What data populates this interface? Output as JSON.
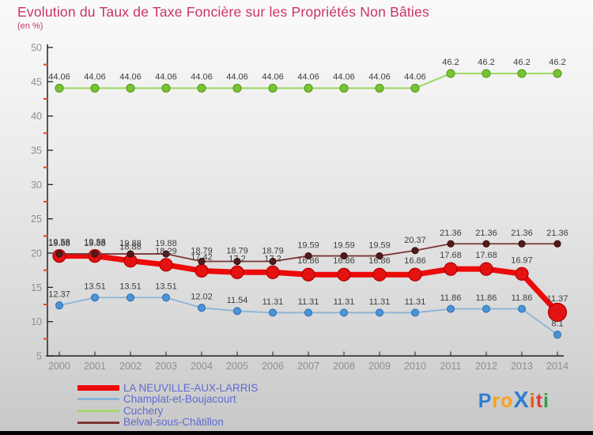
{
  "title": "Evolution du Taux de Taxe Foncière sur les Propriétés Non Bâties",
  "subtitle": "(en %)",
  "chart_data": {
    "type": "line",
    "x": [
      2000,
      2001,
      2002,
      2003,
      2004,
      2005,
      2006,
      2007,
      2008,
      2009,
      2010,
      2011,
      2012,
      2013,
      2014
    ],
    "ylim": [
      5,
      50
    ],
    "y_major_step": 5,
    "y_tick_labels": [
      "5",
      "10",
      "15",
      "20",
      "25",
      "30",
      "35",
      "40",
      "45",
      "50"
    ],
    "grid": false,
    "legend_position": "bottom-left",
    "axis_label_color": "#8f8f8f",
    "axis_line_color": "#222222",
    "minor_tick_color": "#d04b2e",
    "point_label_color": "#3e3e3e",
    "series": [
      {
        "name": "LA NEUVILLE-AUX-LARRIS",
        "color": "#ec0a0a",
        "line_width": 7,
        "marker_radius": 8,
        "last_marker_radius": 11.5,
        "marker_fill": "#e51212",
        "marker_stroke": "#b00000",
        "values": [
          19.58,
          19.58,
          18.88,
          18.29,
          17.42,
          17.2,
          17.2,
          16.86,
          16.86,
          16.86,
          16.86,
          17.68,
          17.68,
          16.97,
          11.37
        ]
      },
      {
        "name": "Champlat-et-Boujacourt",
        "color": "#8ab4d8",
        "line_width": 1.8,
        "marker_radius": 4.5,
        "marker_fill": "#4a94d8",
        "marker_stroke": "#3576b5",
        "values": [
          12.37,
          13.51,
          13.51,
          13.51,
          12.02,
          11.54,
          11.31,
          11.31,
          11.31,
          11.31,
          11.31,
          11.86,
          11.86,
          11.86,
          8.1
        ]
      },
      {
        "name": "Cuchery",
        "color": "#a3d96d",
        "line_width": 2.2,
        "marker_radius": 5,
        "marker_fill": "#78c433",
        "marker_stroke": "#5a9e22",
        "values": [
          44.06,
          44.06,
          44.06,
          44.06,
          44.06,
          44.06,
          44.06,
          44.06,
          44.06,
          44.06,
          44.06,
          46.2,
          46.2,
          46.2,
          46.2
        ]
      },
      {
        "name": "Belval-sous-Châtillon",
        "color": "#7d3636",
        "line_width": 1.8,
        "marker_radius": 4,
        "marker_fill": "#531b1b",
        "marker_stroke": "#3c1010",
        "values": [
          19.88,
          19.88,
          19.88,
          19.88,
          18.79,
          18.79,
          18.79,
          19.59,
          19.59,
          19.59,
          20.37,
          21.36,
          21.36,
          21.36,
          21.36
        ]
      }
    ]
  },
  "legend": {
    "items": [
      {
        "label": "LA NEUVILLE-AUX-LARRIS",
        "color": "#ec0a0a",
        "swatch_height": 7
      },
      {
        "label": "Champlat-et-Boujacourt",
        "color": "#8ab4d8",
        "swatch_height": 3
      },
      {
        "label": "Cuchery",
        "color": "#a3d96d",
        "swatch_height": 3
      },
      {
        "label": "Belval-sous-Châtillon",
        "color": "#7d3636",
        "swatch_height": 3
      }
    ]
  },
  "logo": {
    "text": "Proxiti",
    "letters": [
      {
        "ch": "P",
        "color": "#2e7dd2"
      },
      {
        "ch": "r",
        "color": "#f6a21d"
      },
      {
        "ch": "o",
        "color": "#f6a21d"
      },
      {
        "ch": "X",
        "color": "#2e7dd2",
        "big": true
      },
      {
        "ch": "i",
        "color": "#e8590c"
      },
      {
        "ch": "t",
        "color": "#e03c31"
      },
      {
        "ch": "i",
        "color": "#2f9e44"
      }
    ]
  }
}
